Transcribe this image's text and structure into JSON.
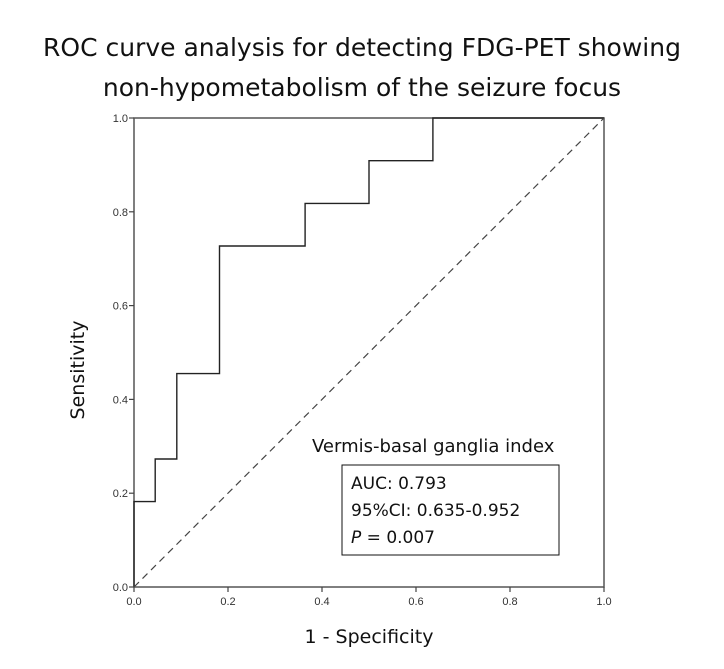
{
  "chart_data": {
    "type": "line",
    "title": "ROC curve analysis for detecting FDG-PET showing non-hypometabolism of the seizure focus",
    "title_lines": [
      "ROC curve analysis for detecting FDG-PET showing",
      "non-hypometabolism of the seizure focus"
    ],
    "xlabel": "1 - Specificity",
    "ylabel": "Sensitivity",
    "xlim": [
      0,
      1
    ],
    "ylim": [
      0,
      1
    ],
    "x_ticks": [
      "0.0",
      "0.2",
      "0.4",
      "0.6",
      "0.8",
      "1.0"
    ],
    "y_ticks": [
      "0.0",
      "0.2",
      "0.4",
      "0.6",
      "0.8",
      "1.0"
    ],
    "grid": false,
    "series": [
      {
        "name": "Vermis-basal ganglia index",
        "style": "step",
        "color": "#222222",
        "x": [
          0.0,
          0.0,
          0.045,
          0.045,
          0.091,
          0.091,
          0.182,
          0.182,
          0.364,
          0.364,
          0.5,
          0.5,
          0.636,
          0.636,
          1.0
        ],
        "y": [
          0.0,
          0.182,
          0.182,
          0.273,
          0.273,
          0.455,
          0.455,
          0.727,
          0.727,
          0.818,
          0.818,
          0.909,
          0.909,
          1.0,
          1.0
        ]
      },
      {
        "name": "Reference line",
        "style": "dashed",
        "color": "#444444",
        "x": [
          0,
          1
        ],
        "y": [
          0,
          1
        ]
      }
    ],
    "annotation": {
      "title": "Vermis-basal ganglia index",
      "auc": "AUC: 0.793",
      "ci": "95%CI: 0.635-0.952",
      "p_label": "P",
      "p_value": " = 0.007"
    }
  }
}
